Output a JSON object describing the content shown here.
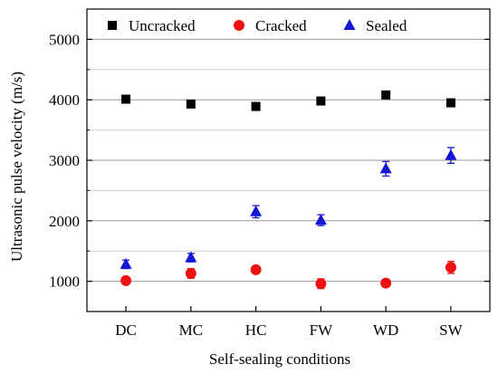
{
  "chart_data": {
    "type": "scatter",
    "xlabel": "Self-sealing conditions",
    "ylabel": "Ultrasonic pulse velocity (m/s)",
    "categories": [
      "DC",
      "MC",
      "HC",
      "FW",
      "WD",
      "SW"
    ],
    "ylim": [
      500,
      5500
    ],
    "yticks": [
      1000,
      2000,
      3000,
      4000,
      5000
    ],
    "ytick_labels": [
      "1000",
      "2000",
      "3000",
      "4000",
      "5000"
    ],
    "grid": "horizontal major and minor",
    "legend_position": "top",
    "series": [
      {
        "name": "Uncracked",
        "marker": "square",
        "color": "#000000",
        "values": [
          4010,
          3930,
          3890,
          3980,
          4080,
          3950
        ],
        "errors": [
          0,
          0,
          0,
          0,
          0,
          0
        ]
      },
      {
        "name": "Cracked",
        "marker": "circle",
        "color": "#ee1111",
        "values": [
          1010,
          1130,
          1190,
          960,
          970,
          1230
        ],
        "errors": [
          60,
          80,
          40,
          80,
          50,
          100
        ]
      },
      {
        "name": "Sealed",
        "marker": "triangle",
        "color": "#1515d6",
        "values": [
          1280,
          1390,
          2150,
          2010,
          2860,
          3080
        ],
        "errors": [
          70,
          70,
          100,
          90,
          120,
          130
        ]
      }
    ]
  }
}
